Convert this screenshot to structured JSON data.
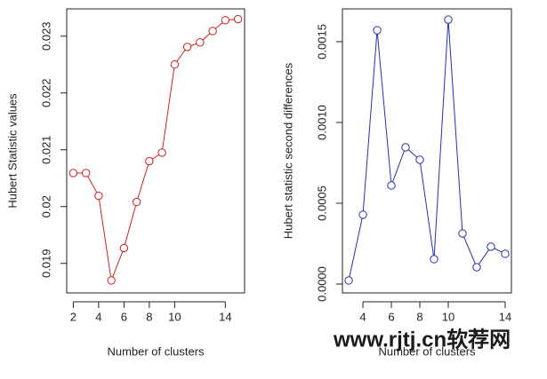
{
  "chart_data": [
    {
      "type": "line",
      "xlabel": "Number of clusters",
      "ylabel": "Hubert Statistic values",
      "x": [
        2,
        3,
        4,
        5,
        6,
        7,
        8,
        9,
        10,
        11,
        12,
        13,
        14,
        15
      ],
      "series": [
        {
          "color": "#d21f1f",
          "values": [
            0.02059,
            0.02059,
            0.02019,
            0.0187,
            0.01927,
            0.02008,
            0.0208,
            0.02095,
            0.0225,
            0.02281,
            0.02289,
            0.02309,
            0.02328,
            0.0233
          ]
        }
      ],
      "xlim": [
        1.48,
        15.52
      ],
      "xticks": [
        2,
        4,
        6,
        8,
        10,
        14
      ],
      "ylim": [
        0.01848,
        0.02348
      ],
      "yticks": [
        0.019,
        0.02,
        0.021,
        0.022,
        0.023
      ]
    },
    {
      "type": "line",
      "xlabel": "Number of clusters",
      "ylabel": "Hubert statistic second differences",
      "x": [
        3,
        4,
        5,
        6,
        7,
        8,
        9,
        10,
        11,
        12,
        13,
        14
      ],
      "series": [
        {
          "color": "#2a2fb0",
          "values": [
            2.2e-05,
            0.000429,
            0.001571,
            0.00061,
            0.000846,
            0.000769,
            0.000154,
            0.001637,
            0.000313,
            0.000104,
            0.000231,
            0.000187
          ]
        }
      ],
      "xlim": [
        2.56,
        14.44
      ],
      "xticks": [
        4,
        6,
        8,
        10,
        14
      ],
      "ylim": [
        -5.5e-05,
        0.001703
      ],
      "yticks": [
        {
          "value": 0,
          "label": "0.0000"
        },
        {
          "value": 0.0005,
          "label": "0.0005"
        },
        {
          "value": 0.001,
          "label": "0.0010"
        },
        {
          "value": 0.0015,
          "label": "0.0015"
        }
      ]
    }
  ],
  "watermark": "www.rjtj.cn软荐网"
}
